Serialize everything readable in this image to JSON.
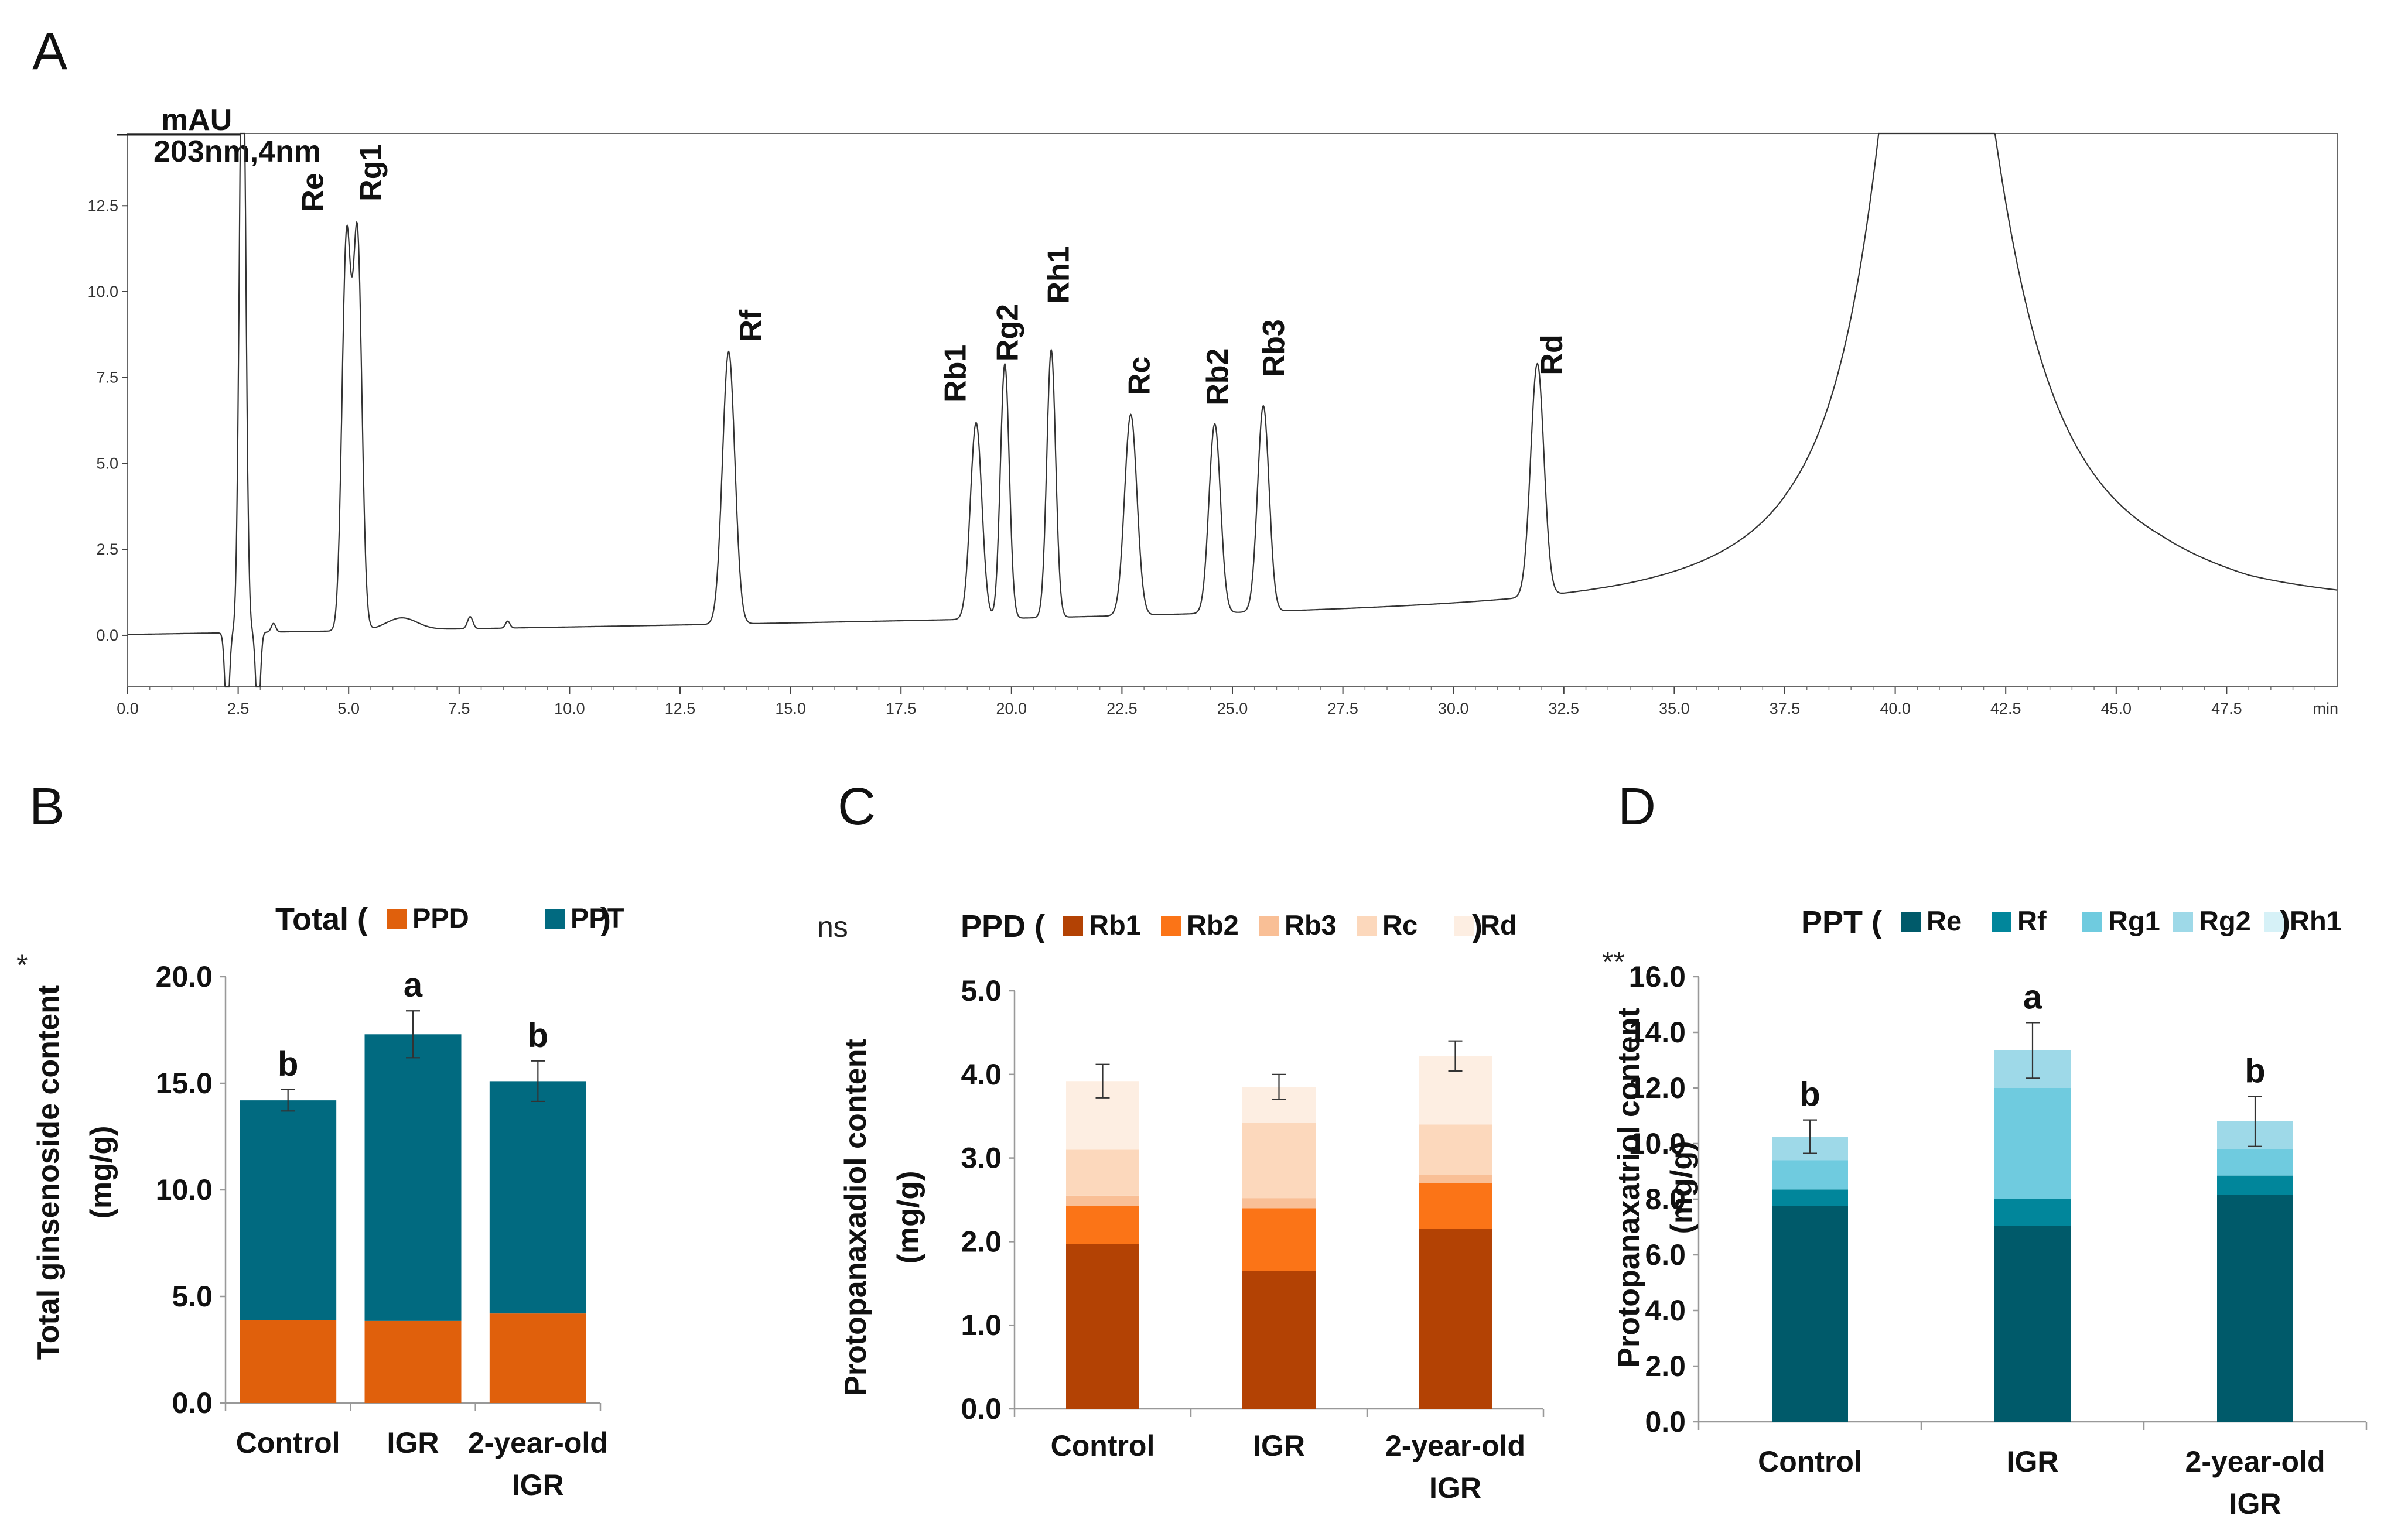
{
  "chart_data": [
    {
      "id": "A",
      "type": "line",
      "panel_label": "A",
      "title": "",
      "ylabel_line1": "mAU",
      "ylabel_line2": "203nm,4nm",
      "xlabel": "min",
      "xlim": [
        0,
        50
      ],
      "ylim": [
        -1.5,
        14.6
      ],
      "x_ticks": [
        "0.0",
        "2.5",
        "5.0",
        "7.5",
        "10.0",
        "12.5",
        "15.0",
        "17.5",
        "20.0",
        "22.5",
        "25.0",
        "27.5",
        "30.0",
        "32.5",
        "35.0",
        "37.5",
        "40.0",
        "42.5",
        "45.0",
        "47.5"
      ],
      "y_ticks": [
        "0.0",
        "2.5",
        "5.0",
        "7.5",
        "10.0",
        "12.5"
      ],
      "peaks": [
        {
          "label": "Re",
          "rt": 4.95,
          "height": 11.3
        },
        {
          "label": "Rg1",
          "rt": 5.2,
          "height": 11.4
        },
        {
          "label": "Rf",
          "rt": 13.6,
          "height": 8.2
        },
        {
          "label": "Rb1",
          "rt": 19.2,
          "height": 6.1
        },
        {
          "label": "Rg2",
          "rt": 19.85,
          "height": 7.8
        },
        {
          "label": "Rh1",
          "rt": 20.9,
          "height": 8.2
        },
        {
          "label": "Rc",
          "rt": 22.7,
          "height": 6.3
        },
        {
          "label": "Rb2",
          "rt": 24.6,
          "height": 6.0
        },
        {
          "label": "Rb3",
          "rt": 25.7,
          "height": 6.5
        },
        {
          "label": "Rd",
          "rt": 31.9,
          "height": 7.4
        }
      ],
      "solvent_peak": {
        "rt": 2.6,
        "height": 14.6
      },
      "late_peak": {
        "rt": 40.8,
        "height": 14.6
      }
    },
    {
      "id": "B",
      "type": "bar",
      "stacked": true,
      "panel_label": "B",
      "stat_note": "*",
      "legend_title": "Total (",
      "legend_close": ")",
      "ylabel_line1": "Total ginsenoside content",
      "ylabel_line2": "(mg/g)",
      "categories": [
        [
          "Control"
        ],
        [
          "IGR"
        ],
        [
          "2-year-old",
          "IGR"
        ]
      ],
      "ylim": [
        0,
        20
      ],
      "y_ticks": [
        "0.0",
        "5.0",
        "10.0",
        "15.0",
        "20.0"
      ],
      "series": [
        {
          "name": "PPD",
          "color": "#e0600c",
          "values": [
            3.9,
            3.85,
            4.2
          ]
        },
        {
          "name": "PPT",
          "color": "#016a80",
          "values": [
            10.3,
            13.45,
            10.9
          ]
        }
      ],
      "errors": [
        0.5,
        1.1,
        0.95
      ],
      "sig_letters": [
        "b",
        "a",
        "b"
      ]
    },
    {
      "id": "C",
      "type": "bar",
      "stacked": true,
      "panel_label": "C",
      "stat_note": "ns",
      "legend_title": "PPD (",
      "legend_close": ")",
      "ylabel_line1": "Protopanaxadiol content",
      "ylabel_line2": "(mg/g)",
      "categories": [
        [
          "Control"
        ],
        [
          "IGR"
        ],
        [
          "2-year-old",
          "IGR"
        ]
      ],
      "ylim": [
        0,
        5
      ],
      "y_ticks": [
        "0.0",
        "1.0",
        "2.0",
        "3.0",
        "4.0",
        "5.0"
      ],
      "series": [
        {
          "name": "Rb1",
          "color": "#b34204",
          "values": [
            1.97,
            1.65,
            2.15
          ]
        },
        {
          "name": "Rb2",
          "color": "#fb7417",
          "values": [
            0.46,
            0.75,
            0.55
          ]
        },
        {
          "name": "Rb3",
          "color": "#f9bf96",
          "values": [
            0.12,
            0.12,
            0.1
          ]
        },
        {
          "name": "Rc",
          "color": "#fcd8bc",
          "values": [
            0.55,
            0.9,
            0.6
          ]
        },
        {
          "name": "Rd",
          "color": "#fdeee2",
          "values": [
            0.82,
            0.43,
            0.82
          ]
        }
      ],
      "errors": [
        0.2,
        0.15,
        0.18
      ],
      "sig_letters": []
    },
    {
      "id": "D",
      "type": "bar",
      "stacked": true,
      "panel_label": "D",
      "stat_note": "**",
      "legend_title": "PPT (",
      "legend_close": ")",
      "ylabel_line1": "Protopanaxatriol content",
      "ylabel_line2": "(mg/g)",
      "categories": [
        [
          "Control"
        ],
        [
          "IGR"
        ],
        [
          "2-year-old",
          "IGR"
        ]
      ],
      "ylim": [
        0,
        16
      ],
      "y_ticks": [
        "0.0",
        "2.0",
        "4.0",
        "6.0",
        "8.0",
        "10.0",
        "12.0",
        "14.0",
        "16.0"
      ],
      "series": [
        {
          "name": "Re",
          "color": "#005a6a",
          "values": [
            7.75,
            7.05,
            8.15
          ]
        },
        {
          "name": "Rf",
          "color": "#01869b",
          "values": [
            0.6,
            0.95,
            0.7
          ]
        },
        {
          "name": "Rg1",
          "color": "#6fcbdf",
          "values": [
            1.05,
            4.0,
            0.95
          ]
        },
        {
          "name": "Rg2",
          "color": "#9ed9e8",
          "values": [
            0.85,
            1.35,
            1.0
          ]
        },
        {
          "name": "Rh1",
          "color": "#d6f1f7",
          "values": [
            0.0,
            0.0,
            0.0
          ]
        }
      ],
      "errors": [
        0.6,
        1.0,
        0.9
      ],
      "sig_letters": [
        "b",
        "a",
        "b"
      ]
    }
  ]
}
